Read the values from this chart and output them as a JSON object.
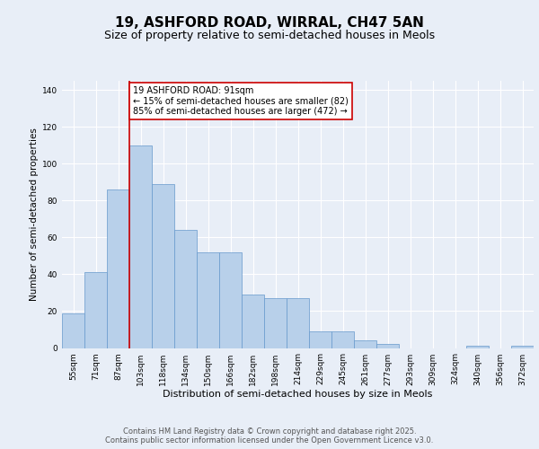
{
  "title1": "19, ASHFORD ROAD, WIRRAL, CH47 5AN",
  "title2": "Size of property relative to semi-detached houses in Meols",
  "xlabel": "Distribution of semi-detached houses by size in Meols",
  "ylabel": "Number of semi-detached properties",
  "categories": [
    "55sqm",
    "71sqm",
    "87sqm",
    "103sqm",
    "118sqm",
    "134sqm",
    "150sqm",
    "166sqm",
    "182sqm",
    "198sqm",
    "214sqm",
    "229sqm",
    "245sqm",
    "261sqm",
    "277sqm",
    "293sqm",
    "309sqm",
    "324sqm",
    "340sqm",
    "356sqm",
    "372sqm"
  ],
  "values": [
    19,
    41,
    86,
    110,
    89,
    64,
    52,
    52,
    29,
    27,
    27,
    9,
    9,
    4,
    2,
    0,
    0,
    0,
    1,
    0,
    1
  ],
  "bar_color": "#b8d0ea",
  "bar_edge_color": "#6699cc",
  "redline_x": 2.5,
  "annotation_text": "19 ASHFORD ROAD: 91sqm\n← 15% of semi-detached houses are smaller (82)\n85% of semi-detached houses are larger (472) →",
  "annotation_box_facecolor": "#ffffff",
  "annotation_box_edgecolor": "#cc0000",
  "redline_color": "#cc0000",
  "ylim": [
    0,
    145
  ],
  "yticks": [
    0,
    20,
    40,
    60,
    80,
    100,
    120,
    140
  ],
  "bg_color": "#e8eef7",
  "title1_fontsize": 11,
  "title2_fontsize": 9,
  "footer_text": "Contains HM Land Registry data © Crown copyright and database right 2025.\nContains public sector information licensed under the Open Government Licence v3.0.",
  "footer_fontsize": 6,
  "xlabel_fontsize": 8,
  "ylabel_fontsize": 7.5,
  "tick_fontsize": 6.5,
  "annot_fontsize": 7
}
